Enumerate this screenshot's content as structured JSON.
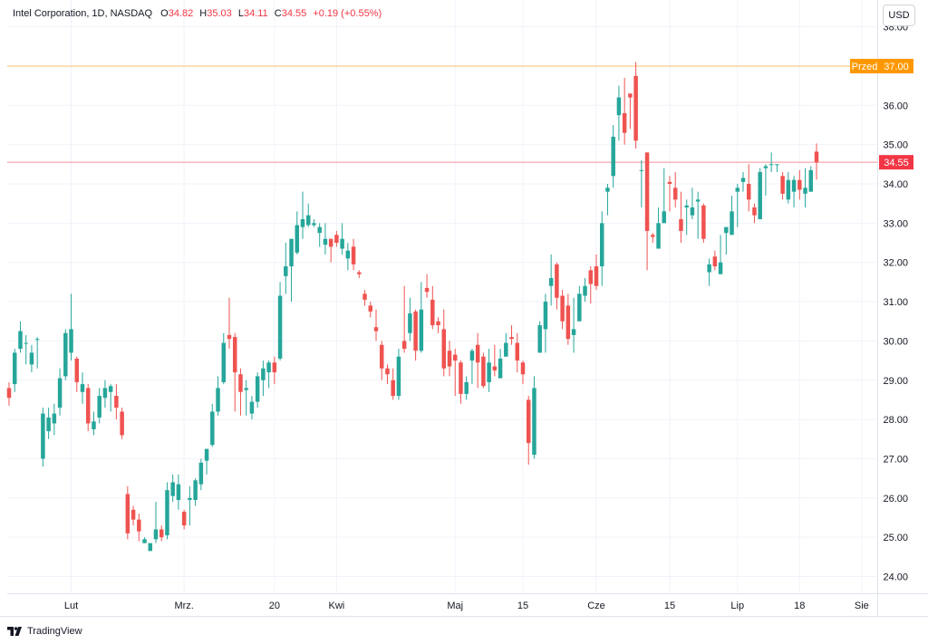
{
  "header": {
    "symbol": "Intel Corporation, 1D, NASDAQ",
    "o_label": "O",
    "o_val": "34.82",
    "h_label": "H",
    "h_val": "35.03",
    "l_label": "L",
    "l_val": "34.11",
    "c_label": "C",
    "c_val": "34.55",
    "change": "+0.19 (+0.55%)"
  },
  "currency": "USD",
  "logo_text": "TradingView",
  "colors": {
    "up": "#26a69a",
    "down": "#ef5350",
    "premarket": "#ff9800",
    "last": "#f23645",
    "grid": "#f0f3fa",
    "text": "#131722"
  },
  "chart_data": {
    "type": "candlestick",
    "ylim": [
      23.6,
      38.35
    ],
    "y_ticks": [
      "24.00",
      "25.00",
      "26.00",
      "27.00",
      "28.00",
      "29.00",
      "30.00",
      "31.00",
      "32.00",
      "33.00",
      "34.00",
      "35.00",
      "36.00",
      "37.00",
      "38.00"
    ],
    "x_ticks": [
      "Lut",
      "Mrz.",
      "20",
      "Kwi",
      "Maj",
      "15",
      "Cze",
      "15",
      "Lip",
      "18",
      "Sie"
    ],
    "lines": [
      {
        "label": "Przed",
        "value": "37.00",
        "color": "#ff9800"
      },
      {
        "label": "",
        "value": "34.55",
        "color": "#f23645"
      }
    ],
    "candles": [
      [
        28.8,
        28.55,
        28.95,
        28.35
      ],
      [
        28.9,
        29.7,
        29.8,
        28.7
      ],
      [
        29.8,
        30.25,
        30.5,
        29.7
      ],
      [
        29.95,
        29.95,
        30.15,
        29.4
      ],
      [
        29.4,
        29.7,
        29.9,
        29.2
      ],
      [
        30.05,
        30.05,
        30.1,
        29.3
      ],
      [
        27.0,
        28.15,
        28.3,
        26.8
      ],
      [
        27.7,
        28.05,
        28.3,
        27.5
      ],
      [
        27.9,
        28.15,
        28.4,
        27.6
      ],
      [
        28.3,
        29.05,
        29.3,
        28.1
      ],
      [
        29.1,
        30.2,
        30.3,
        29.0
      ],
      [
        29.7,
        30.3,
        31.2,
        29.5
      ],
      [
        29.55,
        28.95,
        29.6,
        28.7
      ],
      [
        28.7,
        28.9,
        29.2,
        28.4
      ],
      [
        28.8,
        27.9,
        28.9,
        27.7
      ],
      [
        27.75,
        27.95,
        28.2,
        27.6
      ],
      [
        28.05,
        28.6,
        28.8,
        27.9
      ],
      [
        28.55,
        28.8,
        29.0,
        28.3
      ],
      [
        28.7,
        28.85,
        28.9,
        28.2
      ],
      [
        28.6,
        28.3,
        28.9,
        28.0
      ],
      [
        28.2,
        27.6,
        28.3,
        27.5
      ],
      [
        26.1,
        25.1,
        26.3,
        24.95
      ],
      [
        25.7,
        25.45,
        25.8,
        25.3
      ],
      [
        25.45,
        25.15,
        25.6,
        24.9
      ],
      [
        24.85,
        24.95,
        25.0,
        24.85
      ],
      [
        24.65,
        24.85,
        24.85,
        24.65
      ],
      [
        24.95,
        25.2,
        25.9,
        24.85
      ],
      [
        25.2,
        25.0,
        25.3,
        24.9
      ],
      [
        25.05,
        26.2,
        26.4,
        24.95
      ],
      [
        26.05,
        26.4,
        26.6,
        25.9
      ],
      [
        25.95,
        26.35,
        26.6,
        25.7
      ],
      [
        25.65,
        25.3,
        25.7,
        25.2
      ],
      [
        25.95,
        26.0,
        26.3,
        25.3
      ],
      [
        25.95,
        26.45,
        26.5,
        25.8
      ],
      [
        26.35,
        26.9,
        27.0,
        26.2
      ],
      [
        26.95,
        27.25,
        27.1,
        26.6
      ],
      [
        27.35,
        28.2,
        28.4,
        27.3
      ],
      [
        28.2,
        28.8,
        29.1,
        28.1
      ],
      [
        28.95,
        29.95,
        30.2,
        28.9
      ],
      [
        30.15,
        30.05,
        31.1,
        29.8
      ],
      [
        30.1,
        29.2,
        30.2,
        28.2
      ],
      [
        29.15,
        28.7,
        29.3,
        28.1
      ],
      [
        28.75,
        28.8,
        29.0,
        28.1
      ],
      [
        28.15,
        28.45,
        28.6,
        28.0
      ],
      [
        28.45,
        29.1,
        29.2,
        28.3
      ],
      [
        29.0,
        29.3,
        29.5,
        28.6
      ],
      [
        29.2,
        29.45,
        29.5,
        28.8
      ],
      [
        29.45,
        29.2,
        29.6,
        28.9
      ],
      [
        29.55,
        31.15,
        31.5,
        29.5
      ],
      [
        31.65,
        31.9,
        32.5,
        31.2
      ],
      [
        31.9,
        32.6,
        32.5,
        31.0
      ],
      [
        32.25,
        32.95,
        33.3,
        32.2
      ],
      [
        32.9,
        33.1,
        33.8,
        32.6
      ],
      [
        32.95,
        33.2,
        33.5,
        32.9
      ],
      [
        32.95,
        33.0,
        33.1,
        32.9
      ],
      [
        32.75,
        32.9,
        33.0,
        32.4
      ],
      [
        32.45,
        32.6,
        33.0,
        32.2
      ],
      [
        32.6,
        32.4,
        32.6,
        32.0
      ],
      [
        32.7,
        32.5,
        32.8,
        32.4
      ],
      [
        32.35,
        32.6,
        33.0,
        32.2
      ],
      [
        32.1,
        32.3,
        32.5,
        31.8
      ],
      [
        32.4,
        31.95,
        32.6,
        31.8
      ],
      [
        31.75,
        31.7,
        31.8,
        31.6
      ],
      [
        31.2,
        31.05,
        31.3,
        30.9
      ],
      [
        30.9,
        30.75,
        31.0,
        30.6
      ],
      [
        30.35,
        30.25,
        30.8,
        30.0
      ],
      [
        29.9,
        29.3,
        30.0,
        29.0
      ],
      [
        29.3,
        29.15,
        29.4,
        28.9
      ],
      [
        29.0,
        28.6,
        29.3,
        28.5
      ],
      [
        28.6,
        29.6,
        29.8,
        28.5
      ],
      [
        30.0,
        29.8,
        31.4,
        29.7
      ],
      [
        30.2,
        30.7,
        31.1,
        30.0
      ],
      [
        30.75,
        29.75,
        30.8,
        29.5
      ],
      [
        29.75,
        30.8,
        31.5,
        29.7
      ],
      [
        31.35,
        31.25,
        31.7,
        31.1
      ],
      [
        31.05,
        30.4,
        31.4,
        30.3
      ],
      [
        30.5,
        30.4,
        30.6,
        30.2
      ],
      [
        30.3,
        29.3,
        30.8,
        29.1
      ],
      [
        29.75,
        29.35,
        30.0,
        29.1
      ],
      [
        29.65,
        29.5,
        29.8,
        28.6
      ],
      [
        29.45,
        28.65,
        29.5,
        28.4
      ],
      [
        28.65,
        28.95,
        29.1,
        28.5
      ],
      [
        29.5,
        29.75,
        29.8,
        28.9
      ],
      [
        29.9,
        29.45,
        30.2,
        28.8
      ],
      [
        29.6,
        28.85,
        29.7,
        28.8
      ],
      [
        28.95,
        29.45,
        29.8,
        28.7
      ],
      [
        29.35,
        29.25,
        29.9,
        29.1
      ],
      [
        29.05,
        29.55,
        29.8,
        29.1
      ],
      [
        29.6,
        29.95,
        30.2,
        29.6
      ],
      [
        30.1,
        30.05,
        30.4,
        29.9
      ],
      [
        29.95,
        29.5,
        30.2,
        29.2
      ],
      [
        29.45,
        29.15,
        29.5,
        28.9
      ],
      [
        28.5,
        27.4,
        28.6,
        26.85
      ],
      [
        27.1,
        28.8,
        29.1,
        27.0
      ],
      [
        29.7,
        30.4,
        30.5,
        29.9
      ],
      [
        30.3,
        31.0,
        31.2,
        29.7
      ],
      [
        31.4,
        31.6,
        32.2,
        30.9
      ],
      [
        31.95,
        31.1,
        32.0,
        30.8
      ],
      [
        31.15,
        30.5,
        31.3,
        30.3
      ],
      [
        30.9,
        30.05,
        31.2,
        29.9
      ],
      [
        30.15,
        30.3,
        31.1,
        29.7
      ],
      [
        30.5,
        31.2,
        31.4,
        30.5
      ],
      [
        31.15,
        31.4,
        31.6,
        31.0
      ],
      [
        31.8,
        31.45,
        31.9,
        30.95
      ],
      [
        31.9,
        31.4,
        32.2,
        31.3
      ],
      [
        31.9,
        33.0,
        33.3,
        31.4
      ],
      [
        33.8,
        33.9,
        34.0,
        33.2
      ],
      [
        34.2,
        35.2,
        35.5,
        33.9
      ],
      [
        35.75,
        36.2,
        36.5,
        35.1
      ],
      [
        35.8,
        35.3,
        36.7,
        35.0
      ],
      [
        36.3,
        36.2,
        36.3,
        35.4
      ],
      [
        36.75,
        35.1,
        37.1,
        34.9
      ],
      [
        34.35,
        34.35,
        34.6,
        33.4
      ],
      [
        34.8,
        32.8,
        34.7,
        31.8
      ],
      [
        32.7,
        32.65,
        32.75,
        32.5
      ],
      [
        32.35,
        33.0,
        33.4,
        32.5
      ],
      [
        33.0,
        33.3,
        34.4,
        33.0
      ],
      [
        34.05,
        34.0,
        34.2,
        33.3
      ],
      [
        33.9,
        33.6,
        34.3,
        33.4
      ],
      [
        33.1,
        32.8,
        33.8,
        32.5
      ],
      [
        33.4,
        33.45,
        33.6,
        32.7
      ],
      [
        33.2,
        33.4,
        33.9,
        33.1
      ],
      [
        33.55,
        33.6,
        33.8,
        32.6
      ],
      [
        33.45,
        32.6,
        33.5,
        32.5
      ],
      [
        31.75,
        31.95,
        32.1,
        31.4
      ],
      [
        32.15,
        31.9,
        32.3,
        31.8
      ],
      [
        31.7,
        32.0,
        32.7,
        31.7
      ],
      [
        32.75,
        32.9,
        32.8,
        32.2
      ],
      [
        32.7,
        33.3,
        33.7,
        32.7
      ],
      [
        33.8,
        33.9,
        34.0,
        32.9
      ],
      [
        34.05,
        34.15,
        34.3,
        33.8
      ],
      [
        34.0,
        33.6,
        34.5,
        33.3
      ],
      [
        33.4,
        33.2,
        33.5,
        33.0
      ],
      [
        33.1,
        34.3,
        34.4,
        33.2
      ],
      [
        34.4,
        34.45,
        34.5,
        33.7
      ],
      [
        34.5,
        34.5,
        34.8,
        34.3
      ],
      [
        34.5,
        34.5,
        34.5,
        34.3
      ],
      [
        34.2,
        33.75,
        34.3,
        33.6
      ],
      [
        33.6,
        34.1,
        34.3,
        33.5
      ],
      [
        33.8,
        34.1,
        34.2,
        33.4
      ],
      [
        34.1,
        33.85,
        34.35,
        33.6
      ],
      [
        33.75,
        33.9,
        34.4,
        33.4
      ],
      [
        33.8,
        34.35,
        34.45,
        33.8
      ],
      [
        34.82,
        34.55,
        35.03,
        34.11
      ]
    ]
  }
}
